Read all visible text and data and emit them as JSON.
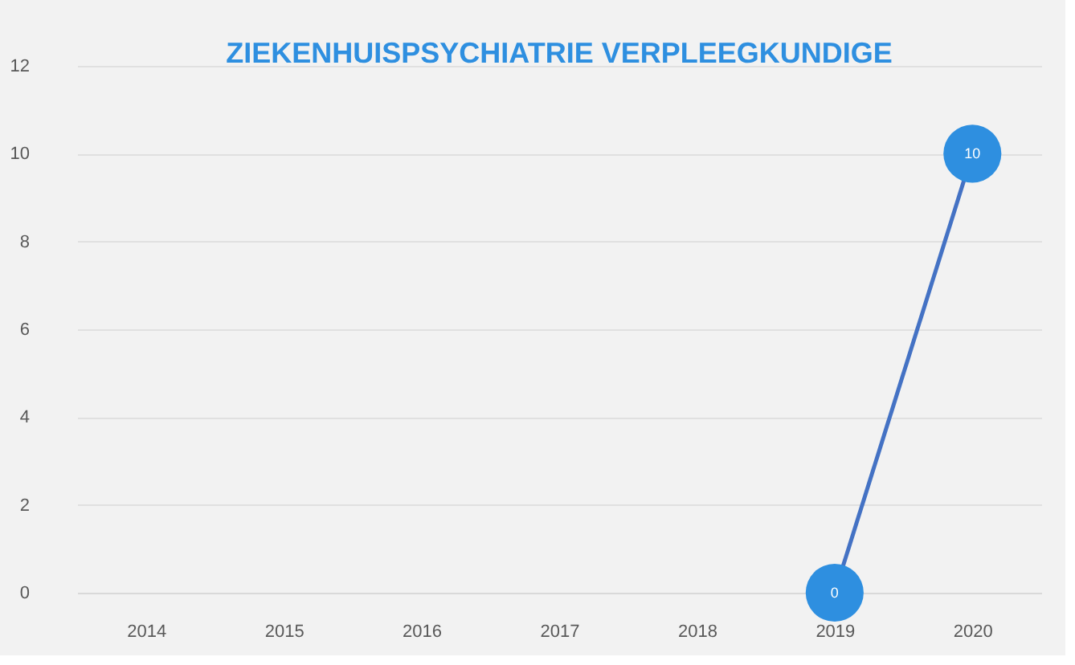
{
  "chart_data": {
    "type": "line",
    "title": "ZIEKENHUISPSYCHIATRIE VERPLEEGKUNDIGE",
    "categories": [
      "2014",
      "2015",
      "2016",
      "2017",
      "2018",
      "2019",
      "2020"
    ],
    "series": [
      {
        "color": "#4472c4",
        "values": [
          null,
          null,
          null,
          null,
          null,
          0,
          10
        ]
      }
    ],
    "ylim": [
      0,
      12
    ],
    "yticks": [
      0,
      2,
      4,
      6,
      8,
      10,
      12
    ],
    "grid": "y",
    "marker": "circle",
    "data_labels": true
  }
}
